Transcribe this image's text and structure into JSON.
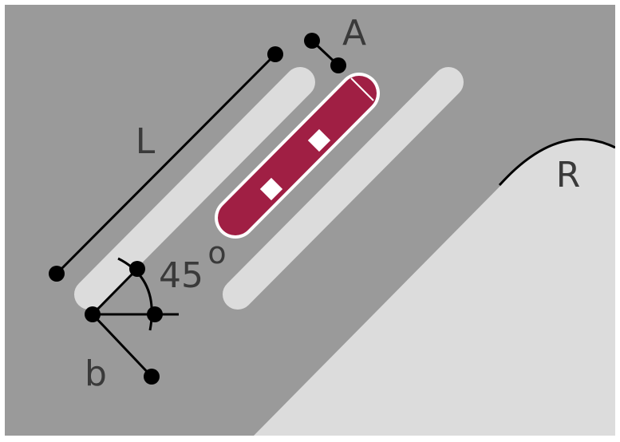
{
  "labels": {
    "length": "L",
    "width": "A",
    "angle": "45",
    "degree_symbol": "o",
    "spacing": "b",
    "radius": "R"
  },
  "colors": {
    "background": "#9a9a9a",
    "light_shape": "#dcdcdc",
    "accent": "#a01f44",
    "line": "#000000",
    "text": "#3a3a3a",
    "frame": "#ffffff"
  },
  "icons": {
    "dimension_endpoint": "black-dot",
    "marker": "white-square"
  }
}
